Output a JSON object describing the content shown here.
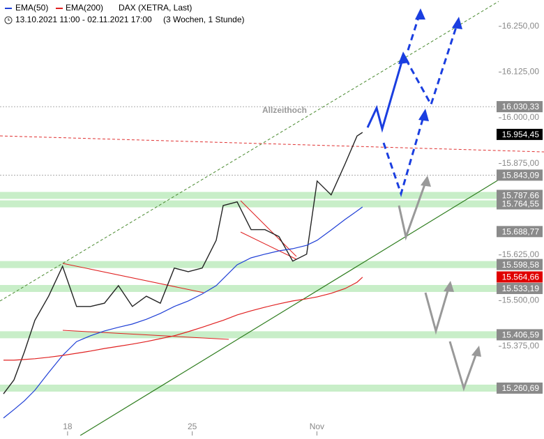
{
  "chart_data": {
    "type": "line",
    "legend": [
      "EMA(50)",
      "EMA(200)",
      "DAX (XETRA, Last)"
    ],
    "subtitle": "13.10.2021 11:00 - 02.11.2021 17:00",
    "subtitle_note": "(3 Wochen, 1 Stunde)",
    "annotation": "Allzeithoch",
    "x": [
      -2.57,
      -2.15,
      -1.73,
      -1.31,
      -0.76,
      -0.2,
      0.36,
      0.92,
      1.48,
      2.04,
      2.6,
      3.16,
      3.72,
      4.28,
      4.84,
      5.4,
      5.96,
      6.24,
      6.8,
      7.36,
      7.92,
      8.48,
      9.03,
      9.59,
      10.01,
      10.57,
      11.13,
      11.61,
      11.83
    ],
    "series": [
      {
        "name": "DAX (XETRA, Last)",
        "color": "#222222",
        "values": [
          15245,
          15283,
          15360,
          15446,
          15512,
          15594,
          15484,
          15484,
          15493,
          15541,
          15484,
          15512,
          15493,
          15589,
          15579,
          15589,
          15665,
          15760,
          15770,
          15694,
          15694,
          15675,
          15608,
          15627,
          15827,
          15789,
          15874,
          15950,
          15960
        ]
      },
      {
        "name": "EMA(50)",
        "color": "#1f3fd6",
        "values": [
          15179,
          15202,
          15226,
          15255,
          15303,
          15350,
          15388,
          15404,
          15417,
          15427,
          15436,
          15449,
          15465,
          15484,
          15499,
          15518,
          15541,
          15560,
          15598,
          15617,
          15627,
          15636,
          15642,
          15651,
          15665,
          15693,
          15722,
          15745,
          15756
        ]
      },
      {
        "name": "EMA(200)",
        "color": "#e02020",
        "values": [
          15337,
          15337,
          15339,
          15341,
          15345,
          15350,
          15356,
          15362,
          15369,
          15375,
          15381,
          15388,
          15396,
          15404,
          15415,
          15427,
          15440,
          15446,
          15461,
          15472,
          15482,
          15491,
          15499,
          15505,
          15510,
          15520,
          15533,
          15550,
          15564
        ]
      }
    ],
    "xlim": [
      -2.71,
      17.29
    ],
    "xticks": [
      {
        "value": 0,
        "label": "18"
      },
      {
        "value": 5,
        "label": "25"
      },
      {
        "value": 10,
        "label": "Nov"
      }
    ],
    "ylim": [
      15173,
      16322
    ],
    "yticks": [
      {
        "value": 16250,
        "label": "16.250,00"
      },
      {
        "value": 16125,
        "label": "16.125,00"
      },
      {
        "value": 16000,
        "label": "16.000,00"
      },
      {
        "value": 15875,
        "label": "15.875,00"
      },
      {
        "value": 15625,
        "label": "15.625,00"
      },
      {
        "value": 15500,
        "label": "15.500,00"
      },
      {
        "value": 15375,
        "label": "15.375,00"
      }
    ],
    "levels": [
      {
        "value": 16030.33,
        "label": "16.030,33",
        "color": "#8a8a8a",
        "line": true
      },
      {
        "value": 15954.45,
        "label": "15.954,45",
        "color": "#000000"
      },
      {
        "value": 15843.09,
        "label": "15.843,09",
        "color": "#8a8a8a",
        "line": true
      },
      {
        "value": 15787.66,
        "label": "15.787,66",
        "color": "#8a8a8a",
        "zone": true
      },
      {
        "value": 15764.55,
        "label": "15.764,55",
        "color": "#8a8a8a",
        "zone": true
      },
      {
        "value": 15688.77,
        "label": "15.688,77",
        "color": "#8a8a8a"
      },
      {
        "value": 15598.58,
        "label": "15.598,58",
        "color": "#8a8a8a",
        "zone": true
      },
      {
        "value": 15564.66,
        "label": "15.564,66",
        "color": "#e00000"
      },
      {
        "value": 15533.19,
        "label": "15.533,19",
        "color": "#8a8a8a",
        "zone": true
      },
      {
        "value": 15406.59,
        "label": "15.406,59",
        "color": "#8a8a8a",
        "zone": true
      },
      {
        "value": 15260.69,
        "label": "15.260,69",
        "color": "#8a8a8a",
        "zone": true
      }
    ]
  }
}
